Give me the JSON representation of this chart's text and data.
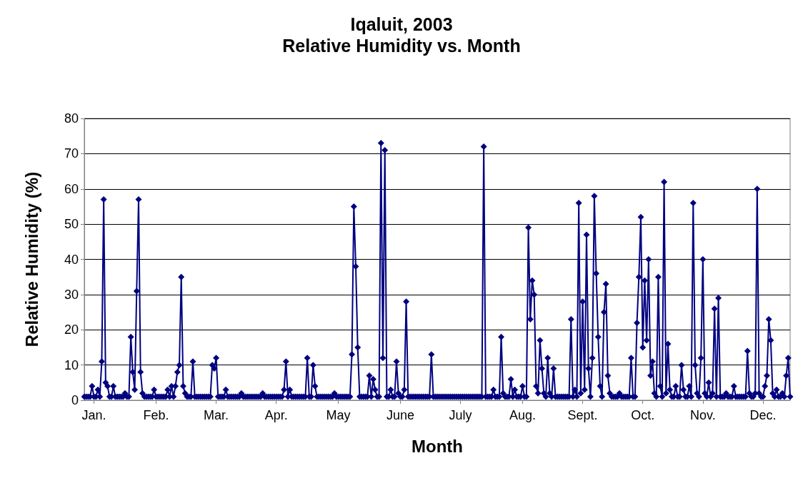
{
  "chart_data": {
    "type": "line",
    "title": "Iqaluit, 2003",
    "subtitle": "Relative Humidity vs. Month",
    "xlabel": "Month",
    "ylabel": "Relative Humidity (%)",
    "categories": [
      null,
      null,
      null,
      null,
      null,
      "Jan.",
      null,
      null,
      null,
      null,
      null,
      null,
      null,
      null,
      null,
      null,
      null,
      null,
      null,
      null,
      null,
      null,
      null,
      null,
      null,
      null,
      null,
      null,
      null,
      null,
      null,
      null,
      null,
      null,
      null,
      null,
      null,
      "Feb.",
      null,
      null,
      null,
      null,
      null,
      null,
      null,
      null,
      null,
      null,
      null,
      null,
      null,
      null,
      null,
      null,
      null,
      null,
      null,
      null,
      null,
      null,
      null,
      null,
      null,
      null,
      null,
      null,
      null,
      null,
      "Mar.",
      null,
      null,
      null,
      null,
      null,
      null,
      null,
      null,
      null,
      null,
      null,
      null,
      null,
      null,
      null,
      null,
      null,
      null,
      null,
      null,
      null,
      null,
      null,
      null,
      null,
      null,
      null,
      null,
      null,
      null,
      "Apr.",
      null,
      null,
      null,
      null,
      null,
      null,
      null,
      null,
      null,
      null,
      null,
      null,
      null,
      null,
      null,
      null,
      null,
      null,
      null,
      null,
      null,
      null,
      null,
      null,
      null,
      null,
      null,
      null,
      null,
      null,
      null,
      "May",
      null,
      null,
      null,
      null,
      null,
      null,
      null,
      null,
      null,
      null,
      null,
      null,
      null,
      null,
      null,
      null,
      null,
      null,
      null,
      null,
      null,
      null,
      null,
      null,
      null,
      null,
      null,
      null,
      null,
      null,
      null,
      "June",
      null,
      null,
      null,
      null,
      null,
      null,
      null,
      null,
      null,
      null,
      null,
      null,
      null,
      null,
      null,
      null,
      null,
      null,
      null,
      null,
      null,
      null,
      null,
      null,
      null,
      null,
      null,
      null,
      null,
      null,
      "July",
      null,
      null,
      null,
      null,
      null,
      null,
      null,
      null,
      null,
      null,
      null,
      null,
      null,
      null,
      null,
      null,
      null,
      null,
      null,
      null,
      null,
      null,
      null,
      null,
      null,
      null,
      null,
      null,
      null,
      null,
      null,
      "Aug.",
      null,
      null,
      null,
      null,
      null,
      null,
      null,
      null,
      null,
      null,
      null,
      null,
      null,
      null,
      null,
      null,
      null,
      null,
      null,
      null,
      null,
      null,
      null,
      null,
      null,
      null,
      null,
      null,
      null,
      null,
      "Sept.",
      null,
      null,
      null,
      null,
      null,
      null,
      null,
      null,
      null,
      null,
      null,
      null,
      null,
      null,
      null,
      null,
      null,
      null,
      null,
      null,
      null,
      null,
      null,
      null,
      null,
      null,
      null,
      null,
      null,
      null,
      "Oct.",
      null,
      null,
      null,
      null,
      null,
      null,
      null,
      null,
      null,
      null,
      null,
      null,
      null,
      null,
      null,
      null,
      null,
      null,
      null,
      null,
      null,
      null,
      null,
      null,
      null,
      null,
      null,
      null,
      null,
      null,
      "Nov.",
      null,
      null,
      null,
      null,
      null,
      null,
      null,
      null,
      null,
      null,
      null,
      null,
      null,
      null,
      null,
      null,
      null,
      null,
      null,
      null,
      null,
      null,
      null,
      null,
      null,
      null,
      null,
      null,
      null,
      null,
      "Dec.",
      null,
      null,
      null,
      null,
      null,
      null,
      null,
      null,
      null,
      null,
      null,
      null,
      null,
      null
    ],
    "series": [
      {
        "color": "#000080",
        "values": [
          1,
          1,
          1,
          1,
          4,
          1,
          1,
          3,
          1,
          11,
          57,
          5,
          4,
          1,
          1,
          4,
          1,
          1,
          1,
          1,
          1,
          2,
          1,
          1,
          18,
          8,
          3,
          31,
          57,
          8,
          2,
          1,
          1,
          1,
          1,
          1,
          3,
          1,
          1,
          1,
          1,
          1,
          1,
          3,
          1,
          4,
          1,
          4,
          8,
          10,
          35,
          4,
          2,
          1,
          1,
          1,
          11,
          1,
          1,
          1,
          1,
          1,
          1,
          1,
          1,
          1,
          10,
          9,
          12,
          1,
          1,
          1,
          1,
          3,
          1,
          1,
          1,
          1,
          1,
          1,
          1,
          2,
          1,
          1,
          1,
          1,
          1,
          1,
          1,
          1,
          1,
          1,
          2,
          1,
          1,
          1,
          1,
          1,
          1,
          1,
          1,
          1,
          1,
          3,
          11,
          1,
          3,
          1,
          1,
          1,
          1,
          1,
          1,
          1,
          1,
          12,
          1,
          1,
          10,
          4,
          1,
          1,
          1,
          1,
          1,
          1,
          1,
          1,
          1,
          2,
          1,
          1,
          1,
          1,
          1,
          1,
          1,
          1,
          13,
          55,
          38,
          15,
          1,
          1,
          1,
          1,
          1,
          7,
          1,
          6,
          3,
          1,
          1,
          73,
          12,
          71,
          1,
          1,
          3,
          1,
          1,
          11,
          2,
          1,
          1,
          3,
          28,
          1,
          1,
          1,
          1,
          1,
          1,
          1,
          1,
          1,
          1,
          1,
          1,
          13,
          1,
          1,
          1,
          1,
          1,
          1,
          1,
          1,
          1,
          1,
          1,
          1,
          1,
          1,
          1,
          1,
          1,
          1,
          1,
          1,
          1,
          1,
          1,
          1,
          1,
          1,
          72,
          1,
          1,
          1,
          1,
          3,
          1,
          1,
          1,
          18,
          2,
          1,
          1,
          1,
          6,
          1,
          3,
          1,
          1,
          1,
          4,
          1,
          1,
          49,
          23,
          34,
          30,
          4,
          2,
          17,
          9,
          2,
          1,
          12,
          2,
          1,
          9,
          1,
          1,
          1,
          1,
          1,
          1,
          1,
          1,
          23,
          1,
          3,
          1,
          56,
          2,
          28,
          3,
          47,
          9,
          1,
          12,
          58,
          36,
          18,
          4,
          1,
          25,
          33,
          7,
          2,
          1,
          1,
          1,
          1,
          2,
          1,
          1,
          1,
          1,
          1,
          12,
          1,
          1,
          22,
          35,
          52,
          15,
          34,
          17,
          40,
          7,
          11,
          2,
          1,
          35,
          4,
          1,
          62,
          2,
          16,
          3,
          1,
          1,
          4,
          1,
          1,
          10,
          3,
          1,
          1,
          4,
          1,
          56,
          10,
          2,
          1,
          12,
          40,
          2,
          1,
          5,
          1,
          2,
          26,
          1,
          29,
          1,
          1,
          1,
          2,
          1,
          1,
          1,
          4,
          1,
          1,
          1,
          1,
          1,
          1,
          14,
          2,
          1,
          1,
          2,
          60,
          2,
          1,
          1,
          4,
          7,
          23,
          17,
          2,
          1,
          3,
          1,
          1,
          2,
          1,
          7,
          12,
          1
        ]
      }
    ],
    "ylim": [
      0,
      80
    ],
    "yticks": [
      0,
      10,
      20,
      30,
      40,
      50,
      60,
      70,
      80
    ],
    "grid": "y",
    "marker": "diamond",
    "line_style": "solid"
  }
}
